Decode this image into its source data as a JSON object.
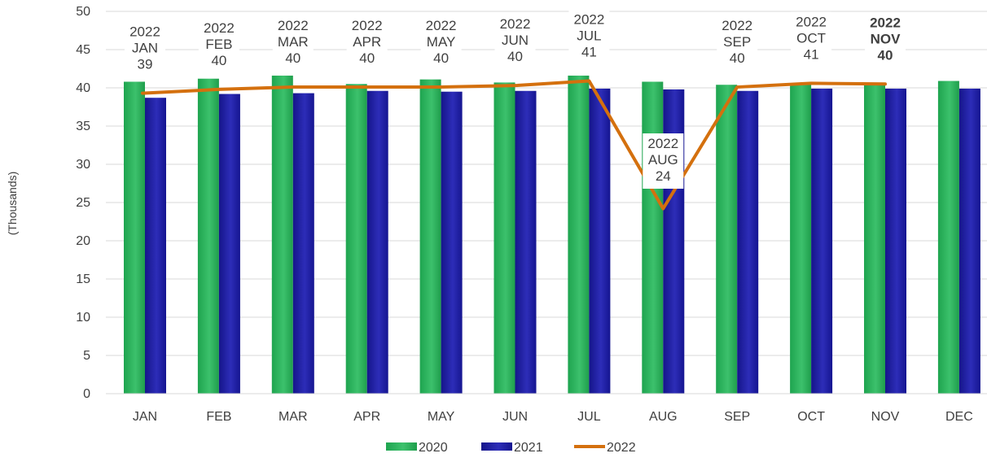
{
  "chart_data": {
    "type": "bar",
    "ylabel": "(Thousands)",
    "ylim": [
      0,
      50
    ],
    "yticks": [
      0,
      5,
      10,
      15,
      20,
      25,
      30,
      35,
      40,
      45,
      50
    ],
    "grid": true,
    "legend_position": "bottom",
    "categories": [
      "JAN",
      "FEB",
      "MAR",
      "APR",
      "MAY",
      "JUN",
      "JUL",
      "AUG",
      "SEP",
      "OCT",
      "NOV",
      "DEC"
    ],
    "series": [
      {
        "name": "2020",
        "kind": "bar",
        "color": "#27b35a",
        "values": [
          40.8,
          41.2,
          41.6,
          40.5,
          41.1,
          40.7,
          41.6,
          40.8,
          40.4,
          40.5,
          40.6,
          40.9
        ]
      },
      {
        "name": "2021",
        "kind": "bar",
        "color": "#1f1fa3",
        "values": [
          38.7,
          39.2,
          39.3,
          39.6,
          39.5,
          39.6,
          39.9,
          39.8,
          39.6,
          39.9,
          39.9,
          39.9
        ]
      },
      {
        "name": "2022",
        "kind": "line",
        "color": "#d4700e",
        "values": [
          39.3,
          39.8,
          40.1,
          40.1,
          40.1,
          40.3,
          40.9,
          24.2,
          40.1,
          40.6,
          40.5,
          null
        ]
      }
    ],
    "data_labels": [
      {
        "lines": [
          "2022",
          "JAN",
          "39"
        ],
        "bold": false
      },
      {
        "lines": [
          "2022",
          "FEB",
          "40"
        ],
        "bold": false
      },
      {
        "lines": [
          "2022",
          "MAR",
          "40"
        ],
        "bold": false
      },
      {
        "lines": [
          "2022",
          "APR",
          "40"
        ],
        "bold": false
      },
      {
        "lines": [
          "2022",
          "MAY",
          "40"
        ],
        "bold": false
      },
      {
        "lines": [
          "2022",
          "JUN",
          "40"
        ],
        "bold": false
      },
      {
        "lines": [
          "2022",
          "JUL",
          "41"
        ],
        "bold": false
      },
      {
        "lines": [
          "2022",
          "AUG",
          "24"
        ],
        "bold": false
      },
      {
        "lines": [
          "2022",
          "SEP",
          "40"
        ],
        "bold": false
      },
      {
        "lines": [
          "2022",
          "OCT",
          "41"
        ],
        "bold": false
      },
      {
        "lines": [
          "2022",
          "NOV",
          "40"
        ],
        "bold": true
      }
    ]
  }
}
